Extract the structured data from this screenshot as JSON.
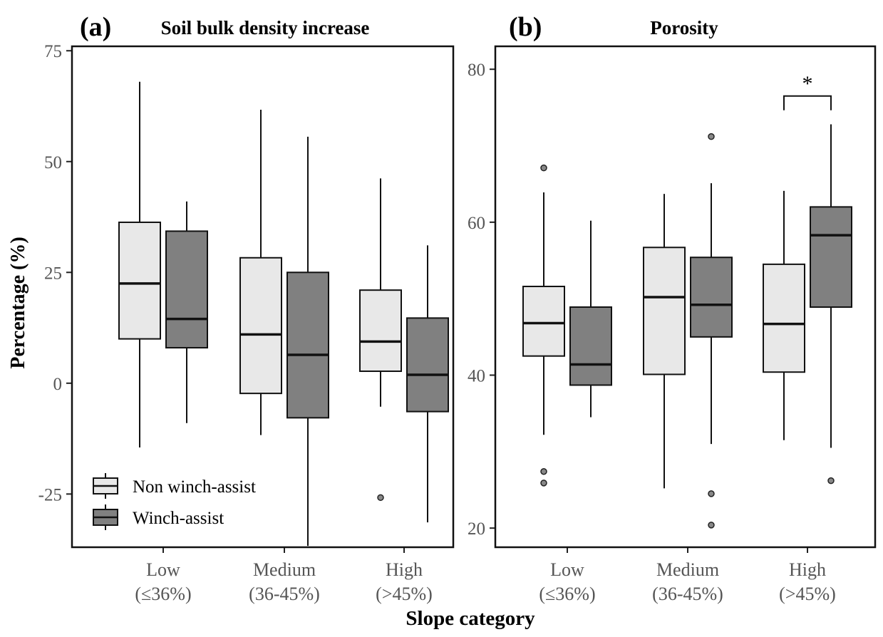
{
  "chart_data": [
    {
      "type": "box",
      "panel_label": "(a)",
      "title": "Soil bulk density increase",
      "ylabel": "Percentage (%)",
      "xlabel": "Slope category",
      "ylim": [
        -37,
        76
      ],
      "yticks": [
        -25,
        0,
        25,
        50,
        75
      ],
      "categories": [
        [
          "Low",
          "(≤36%)"
        ],
        [
          "Medium",
          "(36-45%)"
        ],
        [
          "High",
          "(>45%)"
        ]
      ],
      "series": [
        {
          "name": "Non winch-assist",
          "color": "#e8e8e8",
          "boxes": [
            {
              "whisker_low": -14.5,
              "q1": 10,
              "median": 22.5,
              "q3": 36.3,
              "whisker_high": 68,
              "outliers": []
            },
            {
              "whisker_low": -11.7,
              "q1": -2.3,
              "median": 11,
              "q3": 28.3,
              "whisker_high": 61.7,
              "outliers": []
            },
            {
              "whisker_low": -5.3,
              "q1": 2.7,
              "median": 9.4,
              "q3": 21,
              "whisker_high": 46.2,
              "outliers": [
                -25.8
              ]
            }
          ]
        },
        {
          "name": "Winch-assist",
          "color": "#808080",
          "boxes": [
            {
              "whisker_low": -9,
              "q1": 8,
              "median": 14.5,
              "q3": 34.3,
              "whisker_high": 41,
              "outliers": []
            },
            {
              "whisker_low": -36.7,
              "q1": -7.8,
              "median": 6.4,
              "q3": 25,
              "whisker_high": 55.6,
              "outliers": []
            },
            {
              "whisker_low": -31.4,
              "q1": -6.4,
              "median": 1.9,
              "q3": 14.7,
              "whisker_high": 31.1,
              "outliers": []
            }
          ]
        }
      ],
      "legend": {
        "position": "bottom-left",
        "entries": [
          "Non winch-assist",
          "Winch-assist"
        ]
      }
    },
    {
      "type": "box",
      "panel_label": "(b)",
      "title": "Porosity",
      "ylabel": "",
      "xlabel": "Slope category",
      "ylim": [
        17.5,
        83
      ],
      "yticks": [
        20,
        40,
        60,
        80
      ],
      "categories": [
        [
          "Low",
          "(≤36%)"
        ],
        [
          "Medium",
          "(36-45%)"
        ],
        [
          "High",
          "(>45%)"
        ]
      ],
      "series": [
        {
          "name": "Non winch-assist",
          "color": "#e8e8e8",
          "boxes": [
            {
              "whisker_low": 32.2,
              "q1": 42.5,
              "median": 46.8,
              "q3": 51.6,
              "whisker_high": 63.9,
              "outliers": [
                67.1,
                27.4,
                25.9
              ]
            },
            {
              "whisker_low": 25.2,
              "q1": 40.1,
              "median": 50.2,
              "q3": 56.7,
              "whisker_high": 63.7,
              "outliers": []
            },
            {
              "whisker_low": 31.5,
              "q1": 40.4,
              "median": 46.7,
              "q3": 54.5,
              "whisker_high": 64.1,
              "outliers": []
            }
          ]
        },
        {
          "name": "Winch-assist",
          "color": "#808080",
          "boxes": [
            {
              "whisker_low": 34.5,
              "q1": 38.7,
              "median": 41.4,
              "q3": 48.9,
              "whisker_high": 60.2,
              "outliers": []
            },
            {
              "whisker_low": 31,
              "q1": 45,
              "median": 49.2,
              "q3": 55.4,
              "whisker_high": 65.1,
              "outliers": [
                71.2,
                24.5,
                20.4
              ]
            },
            {
              "whisker_low": 30.5,
              "q1": 48.9,
              "median": 58.3,
              "q3": 62,
              "whisker_high": 72.8,
              "outliers": [
                26.2
              ]
            }
          ]
        }
      ],
      "annotations": [
        {
          "text": "*",
          "category": 2,
          "type": "significance-bracket",
          "y": 76.5
        }
      ]
    }
  ]
}
